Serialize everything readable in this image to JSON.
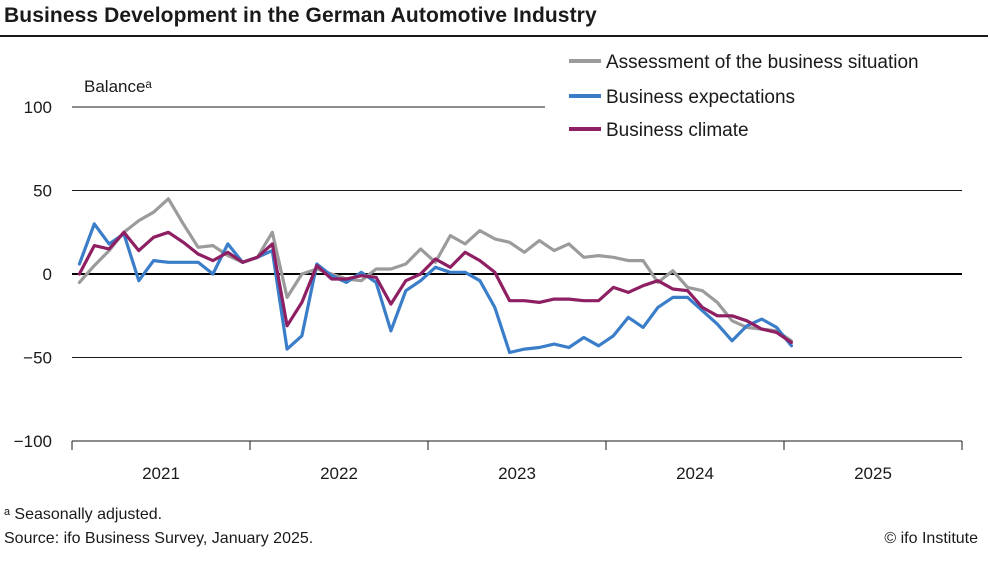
{
  "title": "Business Development in the German Automotive Industry",
  "footnote": "ᵃ Seasonally adjusted.",
  "source": "Source: ifo Business Survey, January 2025.",
  "copyright": "© ifo Institute",
  "chart_data": {
    "type": "line",
    "ylabel": "Balanceᵃ",
    "ylim": [
      -100,
      100
    ],
    "yticks": [
      100,
      50,
      0,
      -50,
      -100
    ],
    "x_start": "2021-01",
    "x_end": "2025-12",
    "year_labels": [
      "2021",
      "2022",
      "2023",
      "2024",
      "2025"
    ],
    "legend_placement": "top-right",
    "grid": true,
    "months": [
      "2021-01",
      "2021-02",
      "2021-03",
      "2021-04",
      "2021-05",
      "2021-06",
      "2021-07",
      "2021-08",
      "2021-09",
      "2021-10",
      "2021-11",
      "2021-12",
      "2022-01",
      "2022-02",
      "2022-03",
      "2022-04",
      "2022-05",
      "2022-06",
      "2022-07",
      "2022-08",
      "2022-09",
      "2022-10",
      "2022-11",
      "2022-12",
      "2023-01",
      "2023-02",
      "2023-03",
      "2023-04",
      "2023-05",
      "2023-06",
      "2023-07",
      "2023-08",
      "2023-09",
      "2023-10",
      "2023-11",
      "2023-12",
      "2024-01",
      "2024-02",
      "2024-03",
      "2024-04",
      "2024-05",
      "2024-06",
      "2024-07",
      "2024-08",
      "2024-09",
      "2024-10",
      "2024-11",
      "2024-12",
      "2025-01"
    ],
    "series": [
      {
        "name": "Assessment of the business situation",
        "color": "#9b9b9b",
        "values": [
          -5,
          5,
          14,
          25,
          32,
          37,
          45,
          30,
          16,
          17,
          11,
          7,
          10,
          25,
          -14,
          0,
          3,
          0,
          -3,
          -4,
          3,
          3,
          6,
          15,
          7,
          23,
          18,
          26,
          21,
          19,
          13,
          20,
          14,
          18,
          10,
          11,
          10,
          8,
          8,
          -5,
          2,
          -8,
          -10,
          -17,
          -28,
          -32,
          -33,
          -34,
          -40
        ]
      },
      {
        "name": "Business expectations",
        "color": "#3a7dc9",
        "values": [
          6,
          30,
          18,
          24,
          -4,
          8,
          7,
          7,
          7,
          0,
          18,
          7,
          10,
          14,
          -45,
          -37,
          6,
          -1,
          -5,
          1,
          -5,
          -34,
          -10,
          -4,
          4,
          1,
          1,
          -4,
          -20,
          -47,
          -45,
          -44,
          -42,
          -44,
          -38,
          -43,
          -37,
          -26,
          -32,
          -20,
          -14,
          -14,
          -22,
          -30,
          -40,
          -31,
          -27,
          -32,
          -43
        ]
      },
      {
        "name": "Business climate",
        "color": "#8e1f63",
        "values": [
          0,
          17,
          15,
          25,
          14,
          22,
          25,
          19,
          12,
          8,
          13,
          7,
          10,
          18,
          -31,
          -17,
          5,
          -3,
          -3,
          -1,
          -2,
          -18,
          -4,
          0,
          9,
          4,
          13,
          8,
          1,
          -16,
          -16,
          -17,
          -15,
          -15,
          -16,
          -16,
          -8,
          -11,
          -7,
          -4,
          -9,
          -10,
          -20,
          -25,
          -25,
          -28,
          -33,
          -35,
          -41
        ]
      }
    ]
  }
}
